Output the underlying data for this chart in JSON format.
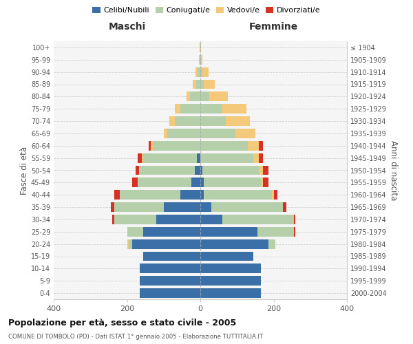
{
  "age_groups": [
    "0-4",
    "5-9",
    "10-14",
    "15-19",
    "20-24",
    "25-29",
    "30-34",
    "35-39",
    "40-44",
    "45-49",
    "50-54",
    "55-59",
    "60-64",
    "65-69",
    "70-74",
    "75-79",
    "80-84",
    "85-89",
    "90-94",
    "95-99",
    "100+"
  ],
  "birth_years": [
    "2000-2004",
    "1995-1999",
    "1990-1994",
    "1985-1989",
    "1980-1984",
    "1975-1979",
    "1970-1974",
    "1965-1969",
    "1960-1964",
    "1955-1959",
    "1950-1954",
    "1945-1949",
    "1940-1944",
    "1935-1939",
    "1930-1934",
    "1925-1929",
    "1920-1924",
    "1915-1919",
    "1910-1914",
    "1905-1909",
    "≤ 1904"
  ],
  "male": {
    "celibe": [
      165,
      165,
      165,
      155,
      185,
      155,
      120,
      100,
      55,
      25,
      15,
      10,
      0,
      0,
      0,
      0,
      0,
      0,
      0,
      0,
      0
    ],
    "coniugato": [
      0,
      0,
      0,
      0,
      10,
      45,
      115,
      135,
      165,
      145,
      150,
      145,
      130,
      90,
      70,
      55,
      28,
      12,
      8,
      2,
      1
    ],
    "vedovo": [
      0,
      0,
      0,
      0,
      5,
      0,
      0,
      0,
      0,
      0,
      2,
      5,
      5,
      10,
      15,
      15,
      10,
      8,
      5,
      1,
      0
    ],
    "divorziato": [
      0,
      0,
      0,
      0,
      0,
      0,
      5,
      10,
      15,
      15,
      10,
      10,
      5,
      0,
      0,
      0,
      0,
      0,
      0,
      0,
      0
    ]
  },
  "female": {
    "nubile": [
      165,
      165,
      165,
      145,
      185,
      155,
      60,
      30,
      10,
      10,
      5,
      0,
      0,
      0,
      0,
      0,
      0,
      0,
      0,
      0,
      0
    ],
    "coniugata": [
      0,
      0,
      0,
      0,
      20,
      100,
      195,
      195,
      185,
      155,
      155,
      145,
      130,
      95,
      70,
      60,
      25,
      10,
      5,
      2,
      0
    ],
    "vedova": [
      0,
      0,
      0,
      0,
      0,
      0,
      0,
      0,
      5,
      5,
      10,
      15,
      30,
      55,
      65,
      65,
      50,
      30,
      18,
      3,
      1
    ],
    "divorziata": [
      0,
      0,
      0,
      0,
      0,
      5,
      5,
      10,
      10,
      15,
      15,
      10,
      10,
      0,
      0,
      0,
      0,
      0,
      0,
      0,
      0
    ]
  },
  "colors": {
    "celibe_nubile": "#3a6fa8",
    "coniugato_a": "#b5cfaa",
    "vedovo_a": "#f5c97a",
    "divorziato_a": "#d73027"
  },
  "title": "Popolazione per età, sesso e stato civile - 2005",
  "subtitle": "COMUNE DI TOMBOLO (PD) - Dati ISTAT 1° gennaio 2005 - Elaborazione TUTTITALIA.IT",
  "xlabel_left": "Maschi",
  "xlabel_right": "Femmine",
  "ylabel_left": "Fasce di età",
  "ylabel_right": "Anni di nascita",
  "xlim": 400,
  "legend_labels": [
    "Celibi/Nubili",
    "Coniugati/e",
    "Vedovi/e",
    "Divorziati/e"
  ]
}
